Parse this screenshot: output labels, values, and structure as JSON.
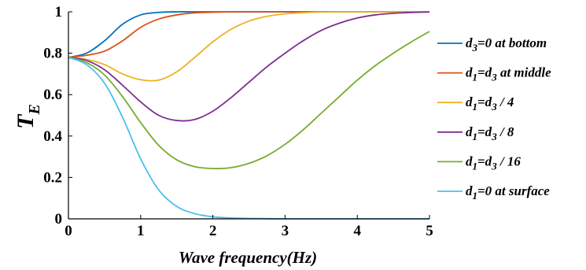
{
  "chart_data": {
    "type": "line",
    "title": "",
    "xlabel": "Wave frequency(Hz)",
    "ylabel": {
      "main": "T",
      "sub": "E"
    },
    "xlim": [
      0,
      5
    ],
    "ylim": [
      0,
      1
    ],
    "xticks": [
      "0",
      "1",
      "2",
      "3",
      "4",
      "5"
    ],
    "yticks": [
      "0",
      "0.2",
      "0.4",
      "0.6",
      "0.8",
      "1"
    ],
    "grid": false,
    "legend_position": "right",
    "x": [
      0,
      0.25,
      0.5,
      0.75,
      1.0,
      1.25,
      1.5,
      1.75,
      2.0,
      2.25,
      2.5,
      2.75,
      3.0,
      3.25,
      3.5,
      3.75,
      4.0,
      4.25,
      4.5,
      4.75,
      5.0
    ],
    "series": [
      {
        "name": "d3=0 at bottom",
        "legend_parts": [
          {
            "t": "d"
          },
          {
            "t": "3",
            "sub": true
          },
          {
            "t": "=0 at bottom"
          }
        ],
        "color": "#0072BD",
        "values": [
          0.78,
          0.8,
          0.86,
          0.94,
          0.985,
          0.997,
          1.0,
          1.0,
          1.0,
          1.0,
          1.0,
          1.0,
          1.0,
          1.0,
          1.0,
          1.0,
          1.0,
          1.0,
          1.0,
          1.0,
          1.0
        ]
      },
      {
        "name": "d1=d3 at middle",
        "legend_parts": [
          {
            "t": "d"
          },
          {
            "t": "1",
            "sub": true
          },
          {
            "t": "=d"
          },
          {
            "t": "3",
            "sub": true
          },
          {
            "t": " at middle"
          }
        ],
        "color": "#D95319",
        "values": [
          0.78,
          0.79,
          0.81,
          0.86,
          0.925,
          0.965,
          0.985,
          0.995,
          0.998,
          1.0,
          1.0,
          1.0,
          1.0,
          1.0,
          1.0,
          1.0,
          1.0,
          1.0,
          1.0,
          1.0,
          1.0
        ]
      },
      {
        "name": "d1=d3 / 4",
        "legend_parts": [
          {
            "t": "d"
          },
          {
            "t": "1",
            "sub": true
          },
          {
            "t": "=d"
          },
          {
            "t": "3",
            "sub": true
          },
          {
            "t": " / 4"
          }
        ],
        "color": "#EDB120",
        "values": [
          0.78,
          0.77,
          0.745,
          0.7,
          0.672,
          0.67,
          0.71,
          0.78,
          0.855,
          0.915,
          0.955,
          0.978,
          0.99,
          0.996,
          0.999,
          1.0,
          1.0,
          1.0,
          1.0,
          1.0,
          1.0
        ]
      },
      {
        "name": "d1=d3 / 8",
        "legend_parts": [
          {
            "t": "d"
          },
          {
            "t": "1",
            "sub": true
          },
          {
            "t": "=d"
          },
          {
            "t": "3",
            "sub": true
          },
          {
            "t": " / 8"
          }
        ],
        "color": "#7E2F8E",
        "values": [
          0.78,
          0.765,
          0.72,
          0.645,
          0.565,
          0.5,
          0.475,
          0.48,
          0.52,
          0.585,
          0.66,
          0.735,
          0.8,
          0.86,
          0.91,
          0.945,
          0.97,
          0.985,
          0.993,
          0.997,
          0.999
        ]
      },
      {
        "name": "d1=d3 / 16",
        "legend_parts": [
          {
            "t": "d"
          },
          {
            "t": "1",
            "sub": true
          },
          {
            "t": "=d"
          },
          {
            "t": "3",
            "sub": true
          },
          {
            "t": " / 16"
          }
        ],
        "color": "#77AC30",
        "values": [
          0.78,
          0.755,
          0.695,
          0.59,
          0.465,
          0.355,
          0.285,
          0.252,
          0.243,
          0.247,
          0.268,
          0.305,
          0.36,
          0.43,
          0.51,
          0.59,
          0.67,
          0.74,
          0.8,
          0.855,
          0.905
        ]
      },
      {
        "name": "d1=0 at surface",
        "legend_parts": [
          {
            "t": "d"
          },
          {
            "t": "1",
            "sub": true
          },
          {
            "t": "=0 at surface"
          }
        ],
        "color": "#4DBEEE",
        "values": [
          0.78,
          0.745,
          0.655,
          0.49,
          0.29,
          0.14,
          0.06,
          0.025,
          0.01,
          0.004,
          0.002,
          0.001,
          0.0,
          0.0,
          0.0,
          0.0,
          0.0,
          0.0,
          0.0,
          0.0,
          0.0
        ]
      }
    ]
  }
}
